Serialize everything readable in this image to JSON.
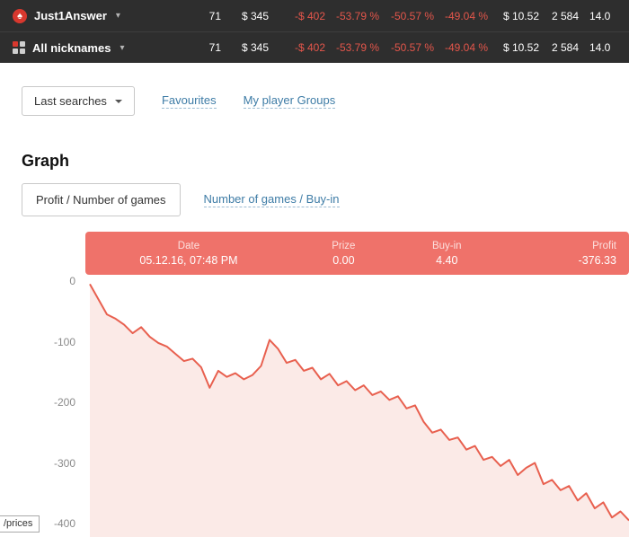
{
  "header": {
    "rows": [
      {
        "name": "Just1Answer",
        "caret": "▾",
        "icon_glyph": "♠",
        "stats": [
          "71",
          "$ 345",
          "-$ 402",
          "-53.79 %",
          "-50.57 %",
          "-49.04 %",
          "$ 10.52",
          "2 584",
          "14.0"
        ]
      },
      {
        "name": "All nicknames",
        "caret": "▾",
        "icon_glyph": "",
        "stats": [
          "71",
          "$ 345",
          "-$ 402",
          "-53.79 %",
          "-50.57 %",
          "-49.04 %",
          "$ 10.52",
          "2 584",
          "14.0"
        ]
      }
    ]
  },
  "toolbar": {
    "last_searches": "Last searches",
    "favourites": "Favourites",
    "my_player_groups": "My player Groups"
  },
  "graph": {
    "title": "Graph",
    "tab_profit": "Profit / Number of games",
    "tab_games_buyin": "Number of games / Buy-in"
  },
  "tooltip": {
    "columns": [
      {
        "label": "Date",
        "value": "05.12.16, 07:48 PM"
      },
      {
        "label": "Prize",
        "value": "0.00"
      },
      {
        "label": "Buy-in",
        "value": "4.40"
      },
      {
        "label": "Profit",
        "value": "-376.33"
      }
    ]
  },
  "footer_fragment": "/prices",
  "colors": {
    "topbar_bg": "#2e2e2e",
    "negative_red": "#e4564b",
    "link_blue": "#3e7ca6",
    "tooltip_bg": "#ef726a",
    "line_color": "#e8604f",
    "fill_color": "#fbeae7"
  },
  "chart_data": {
    "type": "area",
    "title": "Profit / Number of games",
    "xlabel": "Number of games",
    "ylabel": "Profit",
    "x_range": [
      0,
      71
    ],
    "ylim": [
      -400,
      0
    ],
    "yticks": [
      0,
      -100,
      -200,
      -300,
      -400
    ],
    "grid": false,
    "line_color": "#e8604f",
    "fill_color": "#fbeae7",
    "values": [
      -5,
      -30,
      -55,
      -62,
      -72,
      -86,
      -76,
      -92,
      -102,
      -108,
      -120,
      -132,
      -128,
      -142,
      -176,
      -148,
      -158,
      -152,
      -162,
      -155,
      -140,
      -97,
      -112,
      -135,
      -130,
      -148,
      -143,
      -162,
      -153,
      -172,
      -165,
      -180,
      -172,
      -188,
      -182,
      -196,
      -190,
      -210,
      -205,
      -232,
      -250,
      -245,
      -262,
      -258,
      -278,
      -272,
      -295,
      -290,
      -305,
      -295,
      -320,
      -308,
      -300,
      -335,
      -328,
      -345,
      -338,
      -362,
      -350,
      -375,
      -365,
      -390,
      -380,
      -395
    ],
    "highlighted_point": {
      "date": "05.12.16, 07:48 PM",
      "prize": 0.0,
      "buy_in": 4.4,
      "profit": -376.33
    }
  }
}
